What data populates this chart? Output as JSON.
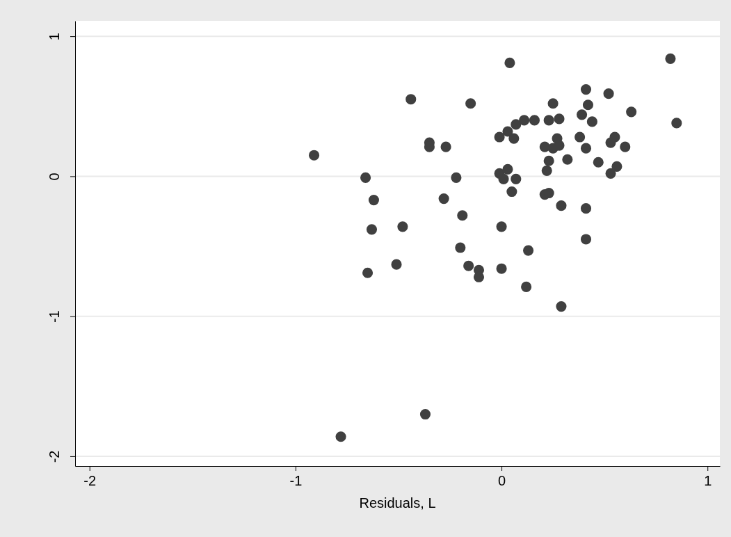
{
  "chart_data": {
    "type": "scatter",
    "xlabel": "Residuals, L",
    "xlim": [
      -2.07,
      1.06
    ],
    "ylim": [
      -2.07,
      1.11
    ],
    "xticks": [
      -2,
      -1,
      0,
      1
    ],
    "yticks": [
      -2,
      -1,
      0,
      1
    ],
    "grid": "y",
    "marker": "circle",
    "series": [
      {
        "color": "#404040",
        "x": [
          -0.91,
          -0.78,
          -0.66,
          -0.65,
          -0.62,
          -0.63,
          -0.44,
          -0.48,
          -0.51,
          -0.37,
          -0.35,
          -0.35,
          -0.27,
          -0.28,
          -0.15,
          -0.22,
          -0.19,
          -0.2,
          -0.16,
          -0.11,
          -0.11,
          0.04,
          0.82,
          0.41,
          0.52,
          0.25,
          0.42,
          0.63,
          0.85,
          0.39,
          0.44,
          0.23,
          0.28,
          0.07,
          0.11,
          0.16,
          -0.01,
          0.03,
          0.06,
          0.21,
          0.25,
          0.27,
          0.28,
          0.38,
          0.41,
          0.55,
          0.53,
          0.6,
          0.23,
          0.22,
          0.32,
          0.47,
          0.56,
          0.53,
          -0.01,
          0.03,
          0.01,
          0.07,
          0.05,
          0.21,
          0.23,
          0.29,
          0.41,
          0.0,
          0.41,
          0.13,
          0.0,
          0.12,
          0.29
        ],
        "values": [
          0.15,
          -1.86,
          -0.01,
          -0.69,
          -0.17,
          -0.38,
          0.55,
          -0.36,
          -0.63,
          -1.7,
          0.24,
          0.21,
          0.21,
          -0.16,
          0.52,
          -0.01,
          -0.28,
          -0.51,
          -0.64,
          -0.67,
          -0.72,
          0.81,
          0.84,
          0.62,
          0.59,
          0.52,
          0.51,
          0.46,
          0.38,
          0.44,
          0.39,
          0.4,
          0.41,
          0.37,
          0.4,
          0.4,
          0.28,
          0.32,
          0.27,
          0.21,
          0.2,
          0.27,
          0.22,
          0.28,
          0.2,
          0.28,
          0.24,
          0.21,
          0.11,
          0.04,
          0.12,
          0.1,
          0.07,
          0.02,
          0.02,
          0.05,
          -0.02,
          -0.02,
          -0.11,
          -0.13,
          -0.12,
          -0.21,
          -0.23,
          -0.36,
          -0.45,
          -0.53,
          -0.66,
          -0.79,
          -0.93
        ]
      }
    ]
  }
}
